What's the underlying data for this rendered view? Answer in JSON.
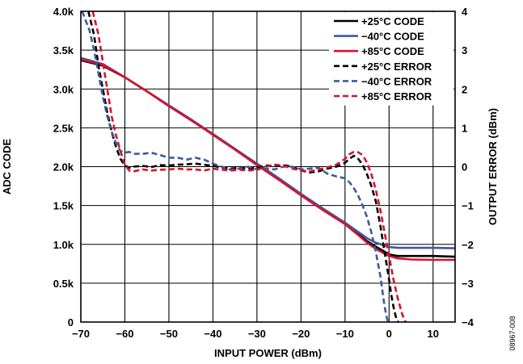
{
  "chart_data": {
    "type": "line",
    "xlabel": "INPUT POWER (dBm)",
    "ylabel_left": "ADC CODE",
    "ylabel_right": "OUTPUT ERROR (dBm)",
    "figure_id": "08967-008",
    "xlim": [
      -70,
      15
    ],
    "ylim_left": [
      0,
      4000
    ],
    "ylim_right": [
      -4,
      4
    ],
    "x_ticks": [
      "−70",
      "−60",
      "−50",
      "−40",
      "−30",
      "−20",
      "−10",
      "0",
      "10"
    ],
    "y_left_ticks": [
      "0",
      "0.5k",
      "1.0k",
      "1.5k",
      "2.0k",
      "2.5k",
      "3.0k",
      "3.5k",
      "4.0k"
    ],
    "y_right_ticks": [
      "−4",
      "−3",
      "−2",
      "−1",
      "0",
      "1",
      "2",
      "3",
      "4"
    ],
    "grid": true,
    "legend_position": "top-right",
    "series": [
      {
        "name": "+25°C CODE",
        "axis": "left",
        "style": "solid",
        "color": "#000000",
        "x": [
          -70,
          -65,
          -60,
          -55,
          -50,
          -45,
          -40,
          -35,
          -30,
          -25,
          -20,
          -15,
          -10,
          -7,
          -5,
          -3,
          -1,
          0,
          2,
          5,
          10,
          15
        ],
        "y": [
          3370,
          3300,
          3150,
          2970,
          2780,
          2600,
          2420,
          2230,
          2030,
          1840,
          1640,
          1450,
          1270,
          1130,
          1040,
          970,
          905,
          870,
          850,
          850,
          850,
          840
        ]
      },
      {
        "name": "−40°C CODE",
        "axis": "left",
        "style": "solid",
        "color": "#3d5a9c",
        "x": [
          -70,
          -65,
          -60,
          -55,
          -50,
          -45,
          -40,
          -35,
          -30,
          -25,
          -20,
          -15,
          -10,
          -7,
          -5,
          -3,
          -1,
          0,
          2,
          5,
          10,
          15
        ],
        "y": [
          3400,
          3320,
          3150,
          2970,
          2790,
          2610,
          2420,
          2230,
          2040,
          1850,
          1650,
          1460,
          1280,
          1160,
          1080,
          1020,
          985,
          965,
          955,
          955,
          955,
          950
        ]
      },
      {
        "name": "+85°C CODE",
        "axis": "left",
        "style": "solid",
        "color": "#d9102e",
        "x": [
          -70,
          -65,
          -60,
          -55,
          -50,
          -45,
          -40,
          -35,
          -30,
          -25,
          -20,
          -15,
          -10,
          -7,
          -5,
          -3,
          -1,
          0,
          2,
          5,
          10,
          15
        ],
        "y": [
          3380,
          3310,
          3150,
          2970,
          2780,
          2600,
          2410,
          2220,
          2020,
          1830,
          1630,
          1440,
          1260,
          1120,
          1020,
          940,
          880,
          850,
          820,
          805,
          800,
          800
        ]
      },
      {
        "name": "+25°C ERROR",
        "axis": "right",
        "style": "dashed",
        "color": "#000000",
        "x": [
          -68.3,
          -67,
          -66,
          -65,
          -64,
          -63,
          -62,
          -61,
          -60,
          -59,
          -58,
          -56,
          -54,
          -52,
          -50,
          -48,
          -46,
          -44,
          -42,
          -40,
          -38,
          -36,
          -34,
          -32,
          -30,
          -28,
          -26,
          -24,
          -22,
          -20,
          -18,
          -16,
          -14,
          -12,
          -10,
          -9,
          -8,
          -7,
          -6,
          -5,
          -4,
          -3,
          -2,
          -1,
          0,
          0.5,
          1,
          1.5,
          2,
          2.3
        ],
        "y": [
          4,
          3.4,
          2.6,
          2.0,
          1.4,
          0.9,
          0.5,
          0.2,
          0.03,
          -0.03,
          0,
          0.02,
          -0.01,
          0.04,
          0.03,
          0.05,
          0.06,
          0.08,
          0.05,
          0.02,
          -0.02,
          -0.05,
          -0.03,
          -0.05,
          -0.03,
          0.03,
          0.02,
          0.04,
          0.0,
          -0.1,
          -0.15,
          -0.12,
          -0.05,
          0.0,
          0.1,
          0.2,
          0.28,
          0.2,
          0.05,
          -0.2,
          -0.5,
          -0.9,
          -1.5,
          -2.2,
          -2.9,
          -3.3,
          -3.6,
          -3.85,
          -4,
          -4
        ]
      },
      {
        "name": "−40°C ERROR",
        "axis": "right",
        "style": "dashed",
        "color": "#3d5a9c",
        "x": [
          -69.7,
          -68,
          -67,
          -66,
          -65,
          -64,
          -63,
          -62,
          -61,
          -60,
          -59,
          -58,
          -56,
          -54,
          -52,
          -50,
          -48,
          -46,
          -44,
          -42,
          -40,
          -38,
          -36,
          -34,
          -32,
          -30,
          -28,
          -26,
          -24,
          -22,
          -20,
          -18,
          -16,
          -14,
          -12,
          -10,
          -9,
          -8,
          -7,
          -6,
          -5,
          -4,
          -3,
          -2,
          -1.5,
          -1,
          -0.5,
          -0.2
        ],
        "y": [
          4,
          3.5,
          3.0,
          2.4,
          1.8,
          1.3,
          0.9,
          0.6,
          0.4,
          0.36,
          0.38,
          0.33,
          0.33,
          0.36,
          0.3,
          0.23,
          0.23,
          0.18,
          0.23,
          0.18,
          0.08,
          0.0,
          -0.08,
          -0.05,
          0.0,
          -0.07,
          -0.05,
          -0.07,
          0.0,
          0.0,
          -0.07,
          -0.05,
          -0.03,
          -0.18,
          -0.25,
          -0.3,
          -0.4,
          -0.55,
          -0.75,
          -1.0,
          -1.3,
          -1.7,
          -2.2,
          -2.8,
          -3.2,
          -3.6,
          -3.9,
          -4
        ]
      },
      {
        "name": "+85°C ERROR",
        "axis": "right",
        "style": "dashed",
        "color": "#d9102e",
        "x": [
          -67.3,
          -66,
          -65,
          -64,
          -63,
          -62,
          -61,
          -60,
          -59,
          -58,
          -56,
          -54,
          -52,
          -50,
          -48,
          -46,
          -44,
          -42,
          -40,
          -38,
          -36,
          -34,
          -32,
          -30,
          -28,
          -26,
          -24,
          -22,
          -20,
          -18,
          -16,
          -14,
          -12,
          -10,
          -9,
          -8,
          -7,
          -6,
          -5,
          -4,
          -3,
          -2,
          -1,
          0,
          1,
          2,
          2.5,
          3,
          3.5,
          3.8
        ],
        "y": [
          4,
          3.4,
          2.7,
          2.0,
          1.3,
          0.8,
          0.4,
          0.05,
          -0.1,
          -0.12,
          -0.07,
          -0.1,
          -0.08,
          -0.07,
          -0.05,
          -0.07,
          -0.07,
          -0.1,
          -0.05,
          -0.08,
          -0.1,
          -0.08,
          -0.1,
          -0.08,
          0.0,
          0.05,
          0.03,
          -0.05,
          -0.1,
          -0.12,
          -0.08,
          -0.02,
          0.05,
          0.2,
          0.32,
          0.38,
          0.37,
          0.3,
          0.1,
          -0.2,
          -0.6,
          -1.1,
          -1.7,
          -2.3,
          -2.9,
          -3.4,
          -3.6,
          -3.8,
          -3.95,
          -4
        ]
      }
    ]
  }
}
